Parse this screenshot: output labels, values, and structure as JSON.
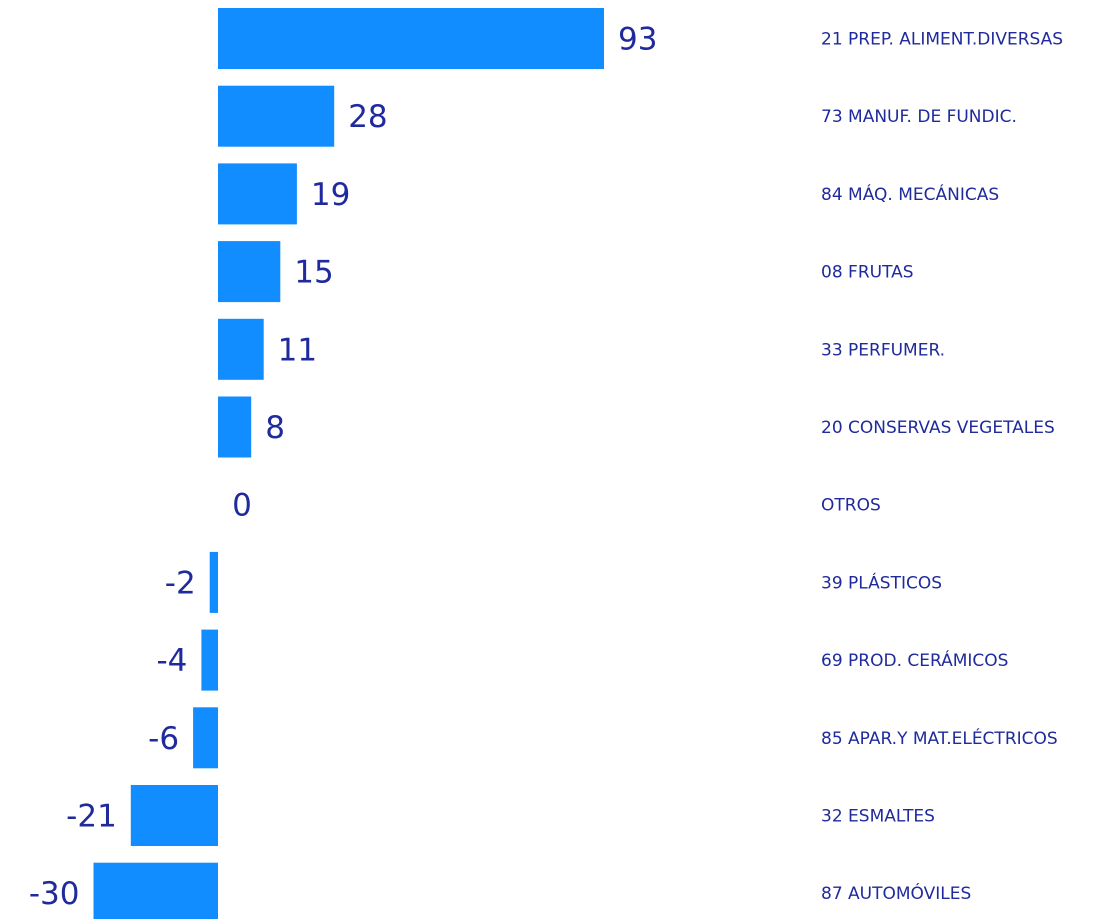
{
  "chart_data": {
    "type": "bar",
    "orientation": "horizontal",
    "bar_color": "#118dff",
    "label_color": "#1f2a9c",
    "categories": [
      "21 PREP. ALIMENT.DIVERSAS",
      "73 MANUF. DE FUNDIC.",
      "84 MÁQ. MECÁNICAS",
      "08 FRUTAS",
      "33 PERFUMER.",
      "20 CONSERVAS VEGETALES",
      "OTROS",
      "39 PLÁSTICOS",
      "69 PROD. CERÁMICOS",
      "85 APAR.Y MAT.ELÉCTRICOS",
      "32 ESMALTES",
      "87 AUTOMÓVILES"
    ],
    "values": [
      93,
      28,
      19,
      15,
      11,
      8,
      0,
      -2,
      -4,
      -6,
      -21,
      -30
    ],
    "value_labels": [
      "93",
      "28",
      "19",
      "15",
      "11",
      "8",
      "0",
      "-2",
      "-4",
      "-6",
      "-21",
      "-30"
    ],
    "title": "",
    "xlabel": "",
    "ylabel": "",
    "grid": false,
    "legend": "none"
  }
}
